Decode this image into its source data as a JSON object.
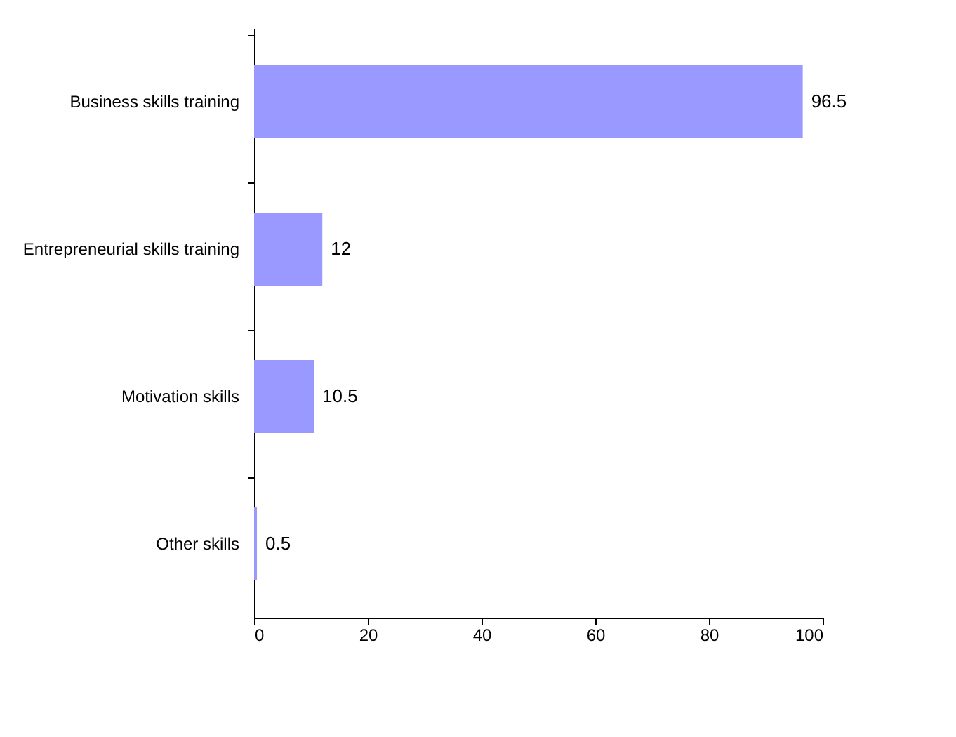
{
  "chart_data": {
    "type": "bar",
    "orientation": "horizontal",
    "categories": [
      "Business skills training",
      "Entrepreneurial skills training",
      "Motivation skills",
      "Other skills"
    ],
    "values": [
      96.5,
      12,
      10.5,
      0.5
    ],
    "color": "#9999ff",
    "xlim": [
      0,
      100
    ],
    "xticks": [
      0,
      20,
      40,
      60,
      80,
      100
    ],
    "grid": false,
    "data_labels": true
  }
}
